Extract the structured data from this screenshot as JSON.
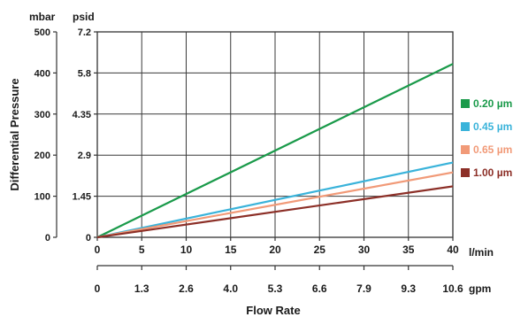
{
  "chart_data": {
    "type": "line",
    "xlabel": "Flow Rate",
    "ylabel": "Differential Pressure",
    "x_unit": "l/min",
    "x2_unit": "gpm",
    "y_unit_left": "mbar",
    "y_unit_right": "psid",
    "xlim": [
      0,
      40
    ],
    "ylim": [
      0,
      500
    ],
    "x_ticks": [
      "0",
      "5",
      "10",
      "15",
      "20",
      "25",
      "30",
      "35",
      "40"
    ],
    "x2_ticks": [
      "0",
      "1.3",
      "2.6",
      "4.0",
      "5.3",
      "6.6",
      "7.9",
      "9.3",
      "10.6"
    ],
    "y_ticks_mbar": [
      "0",
      "100",
      "200",
      "300",
      "400",
      "500"
    ],
    "y_ticks_psid": [
      "0",
      "1.45",
      "2.9",
      "4.35",
      "5.8",
      "7.2"
    ],
    "grid": true,
    "legend_position": "right",
    "series": [
      {
        "name": "0.20 µm",
        "color": "#1a9a4a",
        "x": [
          0,
          40
        ],
        "y": [
          0,
          422
        ]
      },
      {
        "name": "0.45 µm",
        "color": "#3ab3da",
        "x": [
          0,
          40
        ],
        "y": [
          0,
          182
        ]
      },
      {
        "name": "0.65 µm",
        "color": "#f19a78",
        "x": [
          0,
          40
        ],
        "y": [
          0,
          158
        ]
      },
      {
        "name": "1.00 µm",
        "color": "#8c2f27",
        "x": [
          0,
          40
        ],
        "y": [
          0,
          124
        ]
      }
    ]
  }
}
